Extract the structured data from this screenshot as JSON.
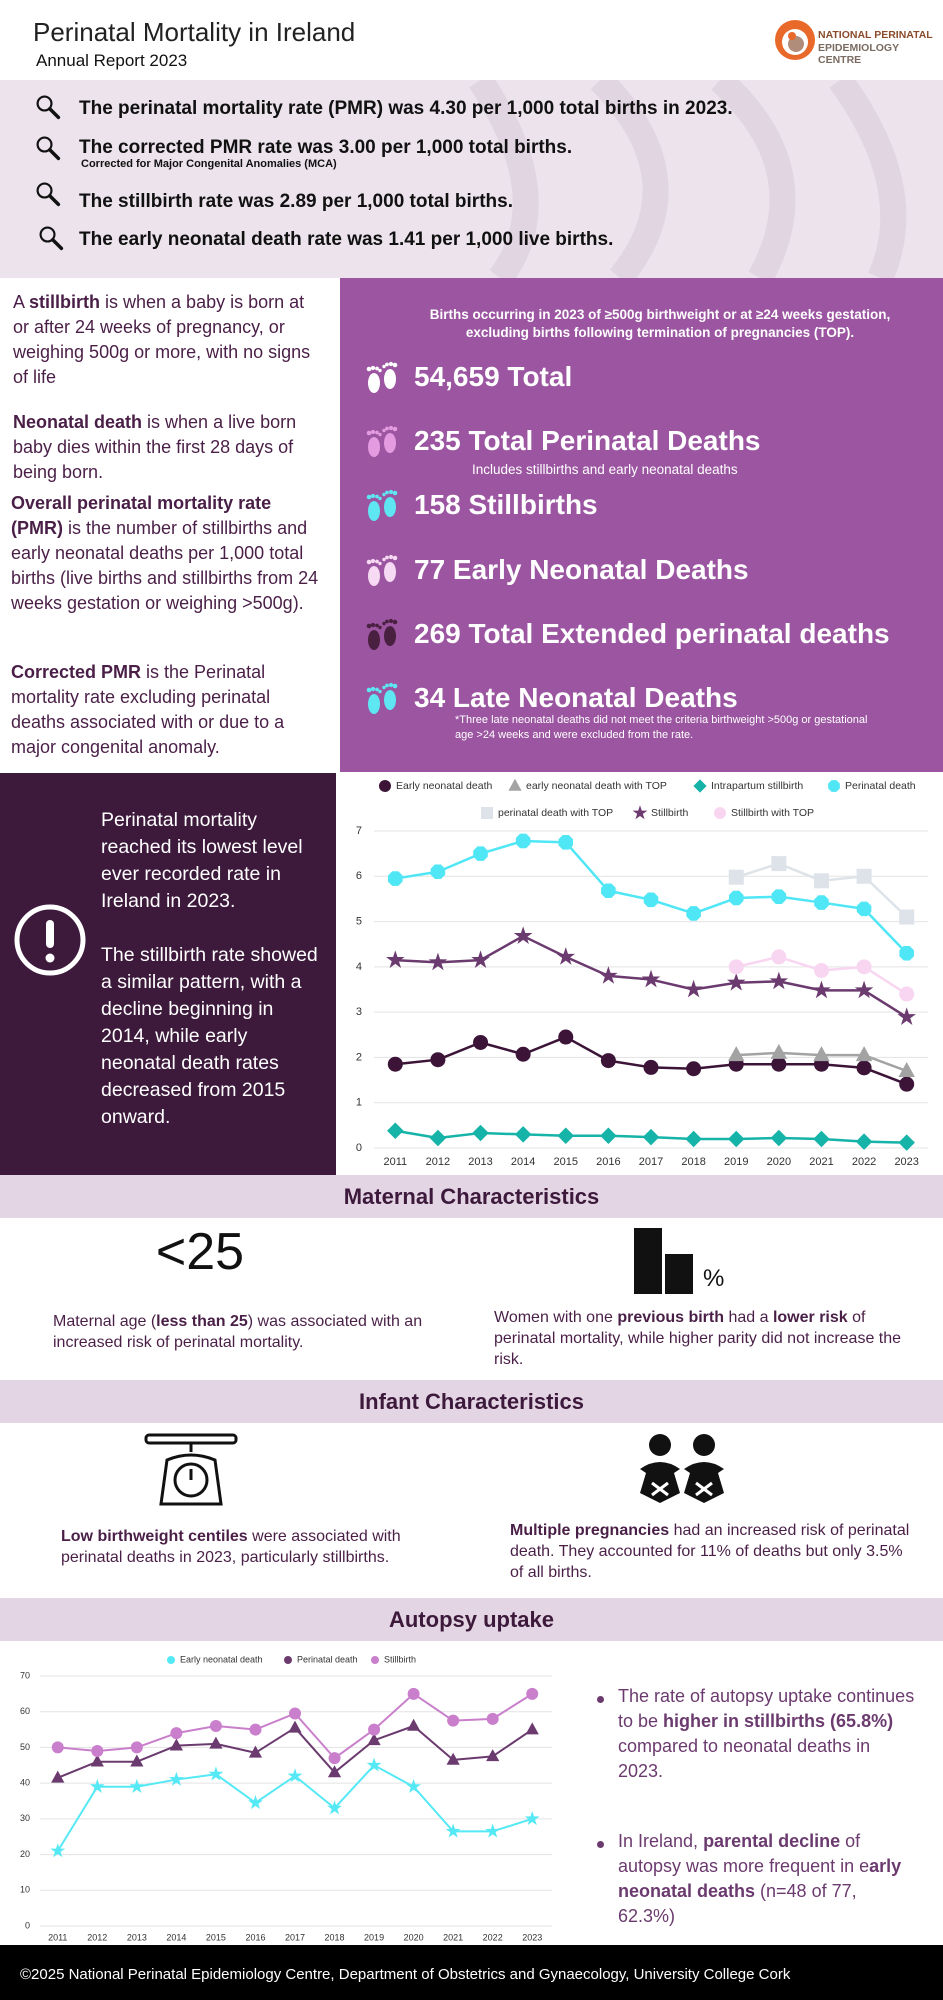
{
  "header": {
    "title": "Perinatal Mortality in Ireland",
    "subtitle": "Annual Report 2023",
    "logo": [
      "NATIONAL PERINATAL",
      "EPIDEMIOLOGY CENTRE"
    ]
  },
  "highlights": [
    {
      "text": "The perinatal mortality rate (PMR) was 4.30 per 1,000 total births in 2023."
    },
    {
      "text": "The corrected PMR rate was 3.00 per 1,000 total births.",
      "note": "Corrected for Major Congenital Anomalies (MCA)"
    },
    {
      "text": "The stillbirth rate was 2.89 per 1,000 total births."
    },
    {
      "text": "The early neonatal death rate was 1.41 per 1,000 live births."
    }
  ],
  "definitions": [
    [
      "A ",
      "stillbirth",
      " is when a baby is born at or after 24 weeks of pregnancy, or weighing 500g or more, with no signs of life"
    ],
    [
      "Neonatal death",
      " is when a live born baby dies within the first 28 days of being born."
    ],
    [
      "Overall perinatal mortality rate (PMR)",
      " is the number of stillbirths and early neonatal deaths per 1,000 total births (live births and stillbirths from 24 weeks gestation or weighing >500g)."
    ],
    [
      "Corrected PMR",
      " is the Perinatal mortality rate excluding perinatal deaths associated with or due to a major congenital anomaly."
    ]
  ],
  "summary": {
    "intro": "Births occurring in 2023 of ≥500g birthweight or at ≥24 weeks gestation, excluding births following termination of pregnancies (TOP).",
    "stats": [
      {
        "text": "54,659 Total"
      },
      {
        "text": "235 Total Perinatal Deaths",
        "note": "Includes stillbirths and early neonatal deaths"
      },
      {
        "text": "158 Stillbirths"
      },
      {
        "text": "77 Early Neonatal Deaths"
      },
      {
        "text": "269 Total Extended perinatal deaths"
      },
      {
        "text": "34 Late Neonatal Deaths",
        "note": "*Three late neonatal deaths did not meet the criteria birthweight >500g or gestational age >24 weeks and were excluded from the rate."
      }
    ]
  },
  "callout": [
    "Perinatal mortality reached its lowest level ever recorded rate in Ireland in 2023.",
    "The stillbirth rate showed a similar pattern, with a decline beginning in 2014, while early neonatal death rates decreased from 2015 onward."
  ],
  "sections": {
    "maternal": {
      "title": "Maternal Characteristics",
      "icon_text": "<25",
      "icon_unit": "%",
      "left": [
        "Maternal age (",
        "less than 25",
        ") was associated with an increased risk of perinatal mortality."
      ],
      "right": [
        "Women with one ",
        "previous birth",
        " had a ",
        "lower risk",
        " of perinatal mortality, while higher parity did not increase the risk."
      ]
    },
    "infant": {
      "title": "Infant Characteristics",
      "left": [
        "Low birthweight centiles",
        " were associated with perinatal deaths in 2023, particularly stillbirths."
      ],
      "right": [
        "Multiple pregnancies",
        " had an increased risk of perinatal death. They accounted for 11% of deaths but only 3.5% of all births."
      ]
    },
    "autopsy": {
      "title": "Autopsy uptake",
      "bullets": [
        [
          "The rate of autopsy uptake continues to be ",
          "higher in stillbirths (65.8%)",
          " compared to neonatal deaths in 2023."
        ],
        [
          "In Ireland, ",
          "parental decline",
          " of autopsy was more frequent in e",
          "arly neonatal deaths",
          " (n=48 of 77, 62.3%)"
        ]
      ]
    }
  },
  "chart_data": [
    {
      "type": "line",
      "categories": [
        "2011",
        "2012",
        "2013",
        "2014",
        "2015",
        "2016",
        "2017",
        "2018",
        "2019",
        "2020",
        "2021",
        "2022",
        "2023"
      ],
      "ylim": [
        0,
        7
      ],
      "yticks": [
        0,
        1,
        2,
        3,
        4,
        5,
        6,
        7
      ],
      "grid": true,
      "series": [
        {
          "name": "Early neonatal death",
          "color": "#3b1438",
          "marker": "circle",
          "values": [
            1.85,
            1.95,
            2.33,
            2.07,
            2.45,
            1.93,
            1.78,
            1.75,
            1.85,
            1.85,
            1.85,
            1.77,
            1.41
          ]
        },
        {
          "name": "early neonatal death with TOP",
          "color": "#a3a3a3",
          "marker": "triangle",
          "values": [
            null,
            null,
            null,
            null,
            null,
            null,
            null,
            null,
            2.05,
            2.1,
            2.05,
            2.05,
            1.7
          ]
        },
        {
          "name": "Intrapartum stillbirth",
          "color": "#15b3a8",
          "marker": "diamond",
          "values": [
            0.38,
            0.22,
            0.33,
            0.3,
            0.27,
            0.27,
            0.24,
            0.2,
            0.2,
            0.22,
            0.2,
            0.14,
            0.12
          ]
        },
        {
          "name": "Perinatal death",
          "color": "#4fe6f5",
          "marker": "octagon",
          "values": [
            5.95,
            6.1,
            6.5,
            6.78,
            6.75,
            5.68,
            5.48,
            5.18,
            5.52,
            5.55,
            5.42,
            5.28,
            4.3
          ]
        },
        {
          "name": "perinatal death with TOP",
          "color": "#dde3e9",
          "marker": "square",
          "values": [
            null,
            null,
            null,
            null,
            null,
            null,
            null,
            null,
            5.98,
            6.28,
            5.9,
            6.0,
            5.1
          ]
        },
        {
          "name": "Stillbirth",
          "color": "#6b3a6e",
          "marker": "star",
          "values": [
            4.15,
            4.1,
            4.15,
            4.68,
            4.22,
            3.8,
            3.72,
            3.5,
            3.65,
            3.68,
            3.48,
            3.48,
            2.89
          ]
        },
        {
          "name": "Stillbirth with TOP",
          "color": "#f8d6f1",
          "marker": "circle",
          "values": [
            null,
            null,
            null,
            null,
            null,
            null,
            null,
            null,
            4.0,
            4.22,
            3.92,
            4.0,
            3.4
          ]
        }
      ]
    },
    {
      "type": "line",
      "categories": [
        "2011",
        "2012",
        "2013",
        "2014",
        "2015",
        "2016",
        "2017",
        "2018",
        "2019",
        "2020",
        "2021",
        "2022",
        "2023"
      ],
      "ylim": [
        0,
        70
      ],
      "yticks": [
        0,
        10,
        20,
        30,
        40,
        50,
        60,
        70
      ],
      "grid": true,
      "legend_marker": "circle",
      "series": [
        {
          "name": "Early neonatal death",
          "color": "#55e8f5",
          "marker": "star",
          "values": [
            21,
            39,
            39,
            41,
            42.5,
            34.5,
            42,
            33,
            45,
            39,
            26.5,
            26.5,
            30
          ]
        },
        {
          "name": "Perinatal death",
          "color": "#6b3a6e",
          "marker": "triangle",
          "values": [
            41.5,
            46,
            46,
            50.5,
            51,
            48.5,
            55.5,
            43,
            52,
            56,
            46.5,
            47.5,
            55
          ]
        },
        {
          "name": "Stillbirth",
          "color": "#c97fcb",
          "marker": "circle",
          "values": [
            50,
            49,
            50,
            54,
            56,
            55,
            59.5,
            47,
            55,
            65,
            57.5,
            58,
            65
          ]
        }
      ]
    }
  ],
  "footer": "©2025 National Perinatal Epidemiology Centre, Department of Obstetrics and Gynaecology, University College Cork"
}
